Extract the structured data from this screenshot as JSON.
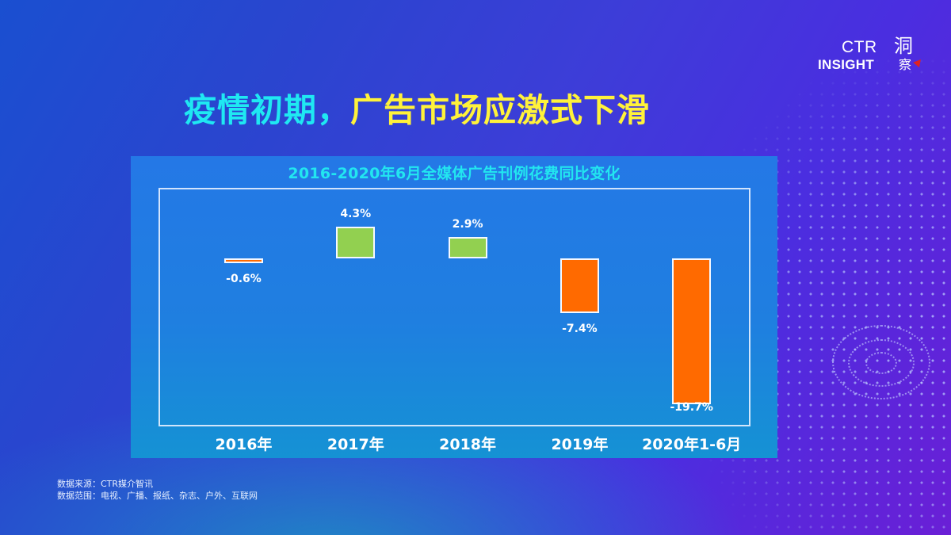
{
  "slide": {
    "headline_part1": "疫情初期，",
    "headline_part2": "广告市场应激式下滑",
    "colors": {
      "headline_cyan": "#1fe8f2",
      "headline_yellow": "#fff23a",
      "positive_bar": "#92d050",
      "negative_bar": "#ff6a00",
      "chart_title": "#22e6f0"
    }
  },
  "logo": {
    "text_top": "CTR",
    "text_bottom": "INSIGHT",
    "cn_top": "洞",
    "cn_bottom": "察"
  },
  "footer": {
    "source": "数据来源：CTR媒介智讯",
    "scope": "数据范围：电视、广播、报纸、杂志、户外、互联网"
  },
  "chart_data": {
    "type": "bar",
    "title": "2016-2020年6月全媒体广告刊例花费同比变化",
    "categories": [
      "2016年",
      "2017年",
      "2018年",
      "2019年",
      "2020年1-6月"
    ],
    "values": [
      -0.6,
      4.3,
      2.9,
      -7.4,
      -19.7
    ],
    "labels": [
      "-0.6%",
      "4.3%",
      "2.9%",
      "-7.4%",
      "-19.7%"
    ],
    "unit": "%",
    "xlabel": "",
    "ylabel": "",
    "ylim": [
      -19.7,
      6.0
    ],
    "grid": false,
    "legend": null,
    "colors": [
      "#ff6a00",
      "#92d050",
      "#92d050",
      "#ff6a00",
      "#ff6a00"
    ]
  }
}
